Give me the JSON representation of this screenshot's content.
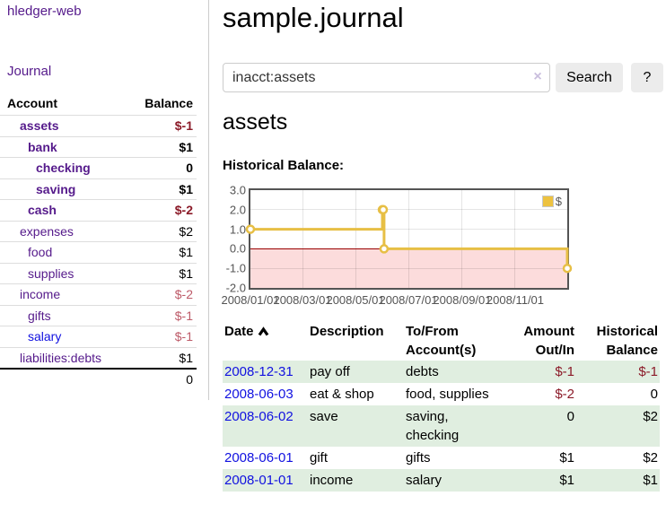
{
  "sidebar": {
    "brand": "hledger-web",
    "nav_journal": "Journal",
    "accounts_header": {
      "account": "Account",
      "balance": "Balance"
    },
    "accounts": [
      {
        "name": "assets",
        "depth": 1,
        "bold": true,
        "balance": "$-1",
        "neg": "strong",
        "link": "purple"
      },
      {
        "name": "bank",
        "depth": 2,
        "bold": true,
        "balance": "$1",
        "neg": "none",
        "link": "purple"
      },
      {
        "name": "checking",
        "depth": 3,
        "bold": true,
        "balance": "0",
        "neg": "none",
        "link": "purple"
      },
      {
        "name": "saving",
        "depth": 3,
        "bold": true,
        "balance": "$1",
        "neg": "none",
        "link": "purple"
      },
      {
        "name": "cash",
        "depth": 2,
        "bold": true,
        "balance": "$-2",
        "neg": "strong",
        "link": "purple"
      },
      {
        "name": "expenses",
        "depth": 1,
        "bold": false,
        "balance": "$2",
        "neg": "none",
        "link": "purple"
      },
      {
        "name": "food",
        "depth": 2,
        "bold": false,
        "balance": "$1",
        "neg": "none",
        "link": "purple"
      },
      {
        "name": "supplies",
        "depth": 2,
        "bold": false,
        "balance": "$1",
        "neg": "none",
        "link": "purple"
      },
      {
        "name": "income",
        "depth": 1,
        "bold": false,
        "balance": "$-2",
        "neg": "soft",
        "link": "purple"
      },
      {
        "name": "gifts",
        "depth": 2,
        "bold": false,
        "balance": "$-1",
        "neg": "soft",
        "link": "purple"
      },
      {
        "name": "salary",
        "depth": 2,
        "bold": false,
        "balance": "$-1",
        "neg": "soft",
        "link": "blue"
      },
      {
        "name": "liabilities:debts",
        "depth": 1,
        "bold": false,
        "balance": "$1",
        "neg": "none",
        "link": "purple"
      }
    ],
    "total": "0"
  },
  "header": {
    "title": "sample.journal"
  },
  "search": {
    "value": "inacct:assets",
    "clear_icon": "×",
    "button_label": "Search",
    "help_label": "?"
  },
  "account_page": {
    "heading": "assets",
    "chart_label": "Historical Balance:"
  },
  "chart_data": {
    "type": "line",
    "style": "step",
    "title": "Historical Balance:",
    "series": [
      {
        "name": "$",
        "color": "#e7bf45",
        "points": [
          [
            "2008-01-01",
            1
          ],
          [
            "2008-06-01",
            2
          ],
          [
            "2008-06-02",
            2
          ],
          [
            "2008-06-03",
            0
          ],
          [
            "2008-12-31",
            -1
          ]
        ]
      }
    ],
    "xlim": [
      "2008-01-01",
      "2008-12-31"
    ],
    "ylim": [
      -2,
      3
    ],
    "yticks": [
      {
        "v": 3,
        "label": "3.0"
      },
      {
        "v": 2,
        "label": "2.0"
      },
      {
        "v": 1,
        "label": "1.0"
      },
      {
        "v": 0,
        "label": "0.0"
      },
      {
        "v": -1,
        "label": "-1.0"
      },
      {
        "v": -2,
        "label": "-2.0"
      }
    ],
    "xticks": [
      {
        "d": "2008-01-01",
        "label": "2008/01/01"
      },
      {
        "d": "2008-03-01",
        "label": "2008/03/01"
      },
      {
        "d": "2008-05-01",
        "label": "2008/05/01"
      },
      {
        "d": "2008-07-01",
        "label": "2008/07/01"
      },
      {
        "d": "2008-09-01",
        "label": "2008/09/01"
      },
      {
        "d": "2008-11-01",
        "label": "2008/11/01"
      }
    ],
    "legend": {
      "position": "top-right",
      "entries": [
        "$"
      ]
    },
    "grid": true,
    "below_zero_fill": "#fcdcdc",
    "zero_line_color": "#990000"
  },
  "register_table": {
    "columns": [
      {
        "l1": "Date",
        "l2": ""
      },
      {
        "l1": "Description",
        "l2": ""
      },
      {
        "l1": "To/From",
        "l2": "Account(s)"
      },
      {
        "l1": "Amount",
        "l2": "Out/In"
      },
      {
        "l1": "Historical",
        "l2": "Balance"
      }
    ],
    "rows": [
      {
        "date": "2008-12-31",
        "description": "pay off",
        "accounts": "debts",
        "amount": "$-1",
        "amount_neg": true,
        "balance": "$-1",
        "balance_neg": true
      },
      {
        "date": "2008-06-03",
        "description": "eat & shop",
        "accounts": "food, supplies",
        "amount": "$-2",
        "amount_neg": true,
        "balance": "0",
        "balance_neg": false
      },
      {
        "date": "2008-06-02",
        "description": "save",
        "accounts": "saving, checking",
        "amount": "0",
        "amount_neg": false,
        "balance": "$2",
        "balance_neg": false
      },
      {
        "date": "2008-06-01",
        "description": "gift",
        "accounts": "gifts",
        "amount": "$1",
        "amount_neg": false,
        "balance": "$2",
        "balance_neg": false
      },
      {
        "date": "2008-01-01",
        "description": "income",
        "accounts": "salary",
        "amount": "$1",
        "amount_neg": false,
        "balance": "$1",
        "balance_neg": false
      }
    ]
  }
}
